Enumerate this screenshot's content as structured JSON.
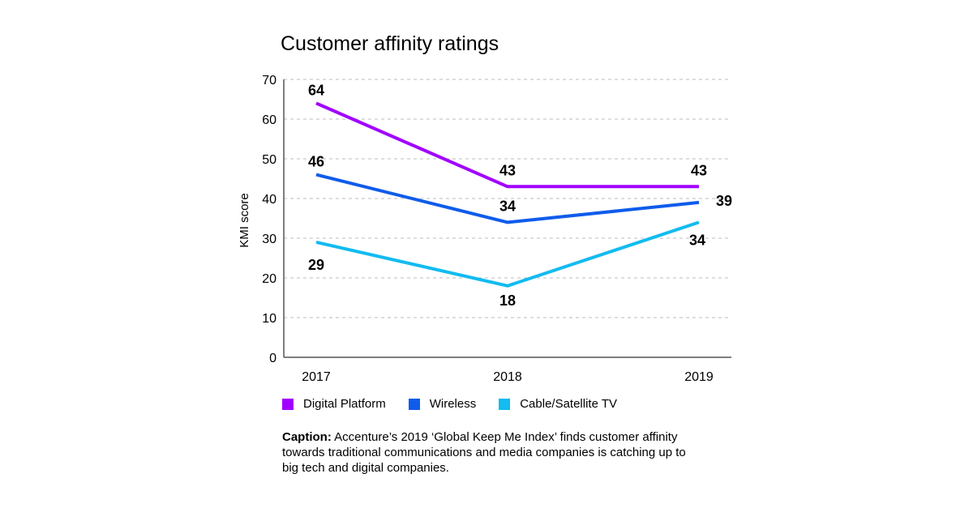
{
  "colors": {
    "digital_platform": "#A100FF",
    "wireless": "#0F5CEB",
    "cable": "#12BBF0",
    "grid": "#bdbdbd",
    "axis": "#555555"
  },
  "caption": {
    "label": "Caption:",
    "text": "Accenture’s 2019 ‘Global Keep Me Index’ finds customer affinity towards traditional communications and media companies is catching up to big tech and digital companies."
  },
  "chart_data": {
    "type": "line",
    "title": "Customer affinity ratings",
    "xlabel": "",
    "ylabel": "KMI score",
    "categories": [
      "2017",
      "2018",
      "2019"
    ],
    "ylim": [
      0,
      70
    ],
    "yticks": [
      0,
      10,
      20,
      30,
      40,
      50,
      60,
      70
    ],
    "grid": true,
    "legend": "bottom",
    "series": [
      {
        "name": "Digital Platform",
        "color": "#A100FF",
        "values": [
          64,
          43,
          43
        ]
      },
      {
        "name": "Wireless",
        "color": "#0F5CEB",
        "values": [
          46,
          34,
          39
        ]
      },
      {
        "name": "Cable/Satellite TV",
        "color": "#12BBF0",
        "values": [
          29,
          18,
          34
        ]
      }
    ]
  }
}
